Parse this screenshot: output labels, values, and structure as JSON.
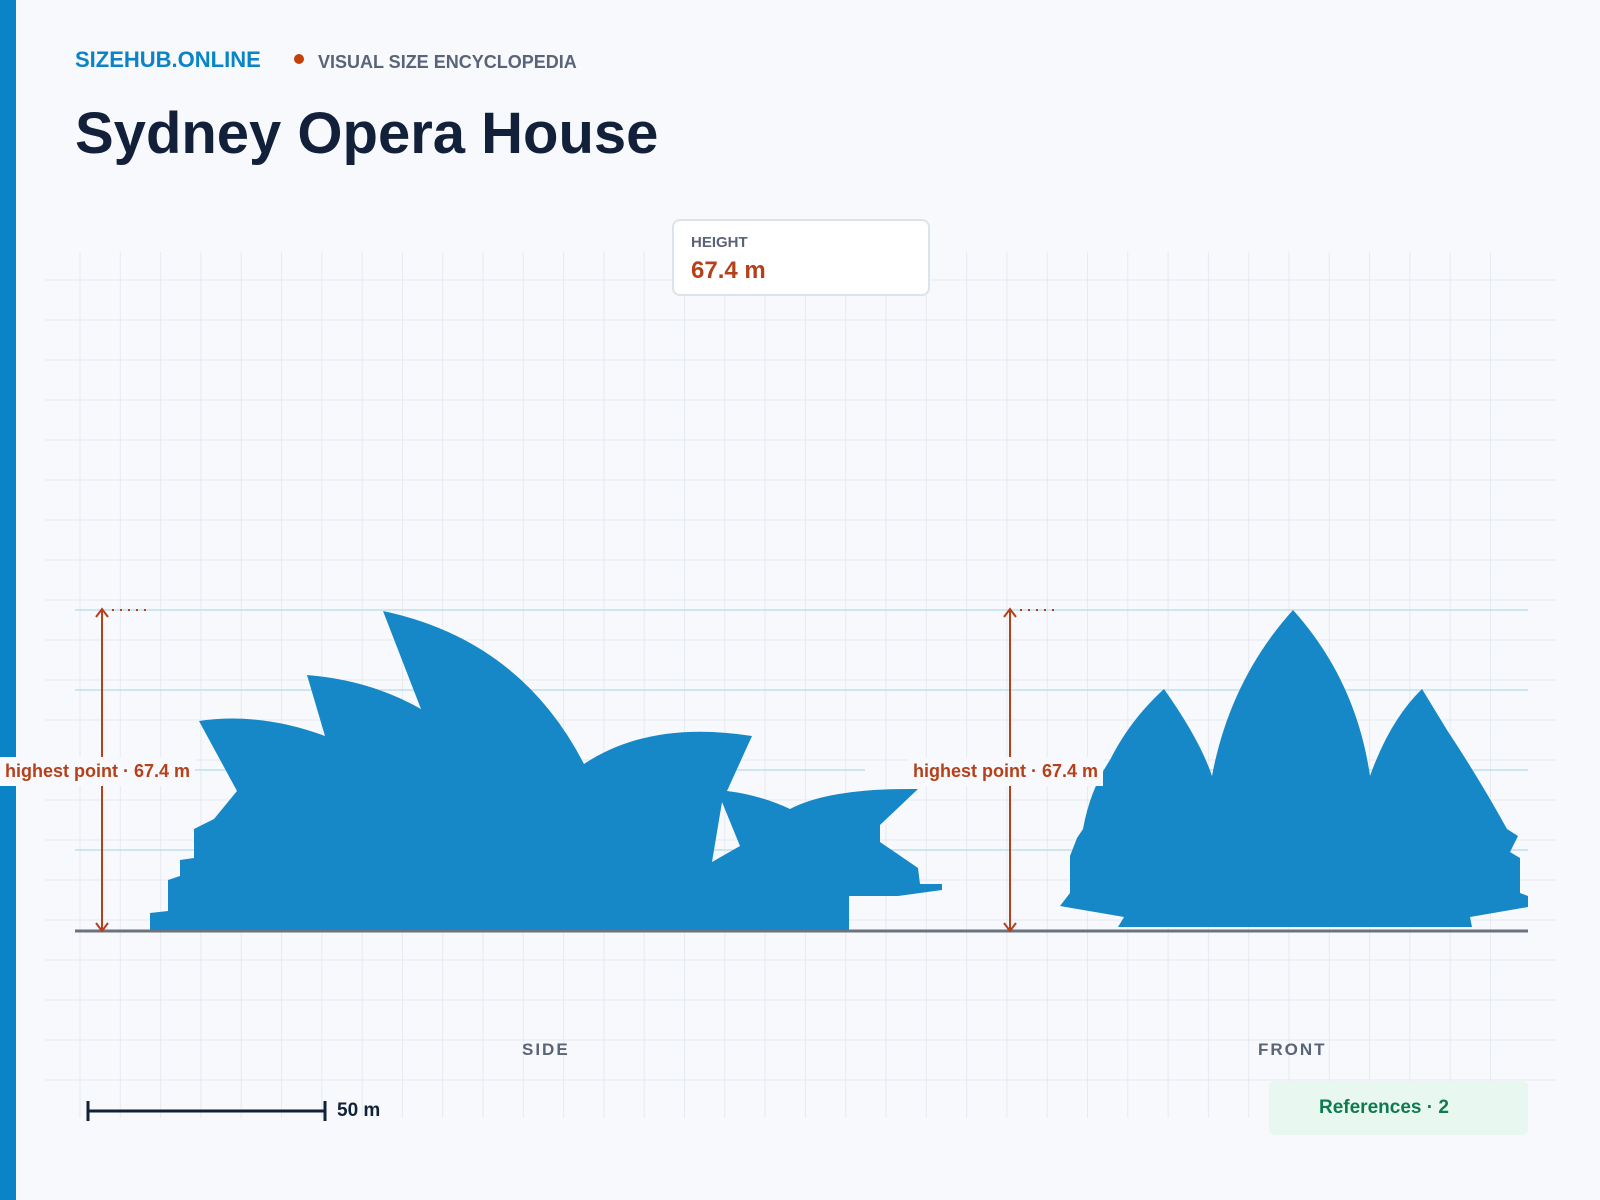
{
  "header": {
    "brand": "SIZEHUB.ONLINE",
    "tagline": "VISUAL SIZE ENCYCLOPEDIA",
    "title": "Sydney Opera House"
  },
  "height_card": {
    "label": "HEIGHT",
    "value": "67.4 m"
  },
  "views": [
    {
      "label": "SIDE",
      "annotation": "highest point · 67.4 m"
    },
    {
      "label": "FRONT",
      "annotation": "highest point · 67.4 m"
    }
  ],
  "scale_bar": {
    "label": "50 m"
  },
  "references": {
    "label": "References · 2"
  }
}
